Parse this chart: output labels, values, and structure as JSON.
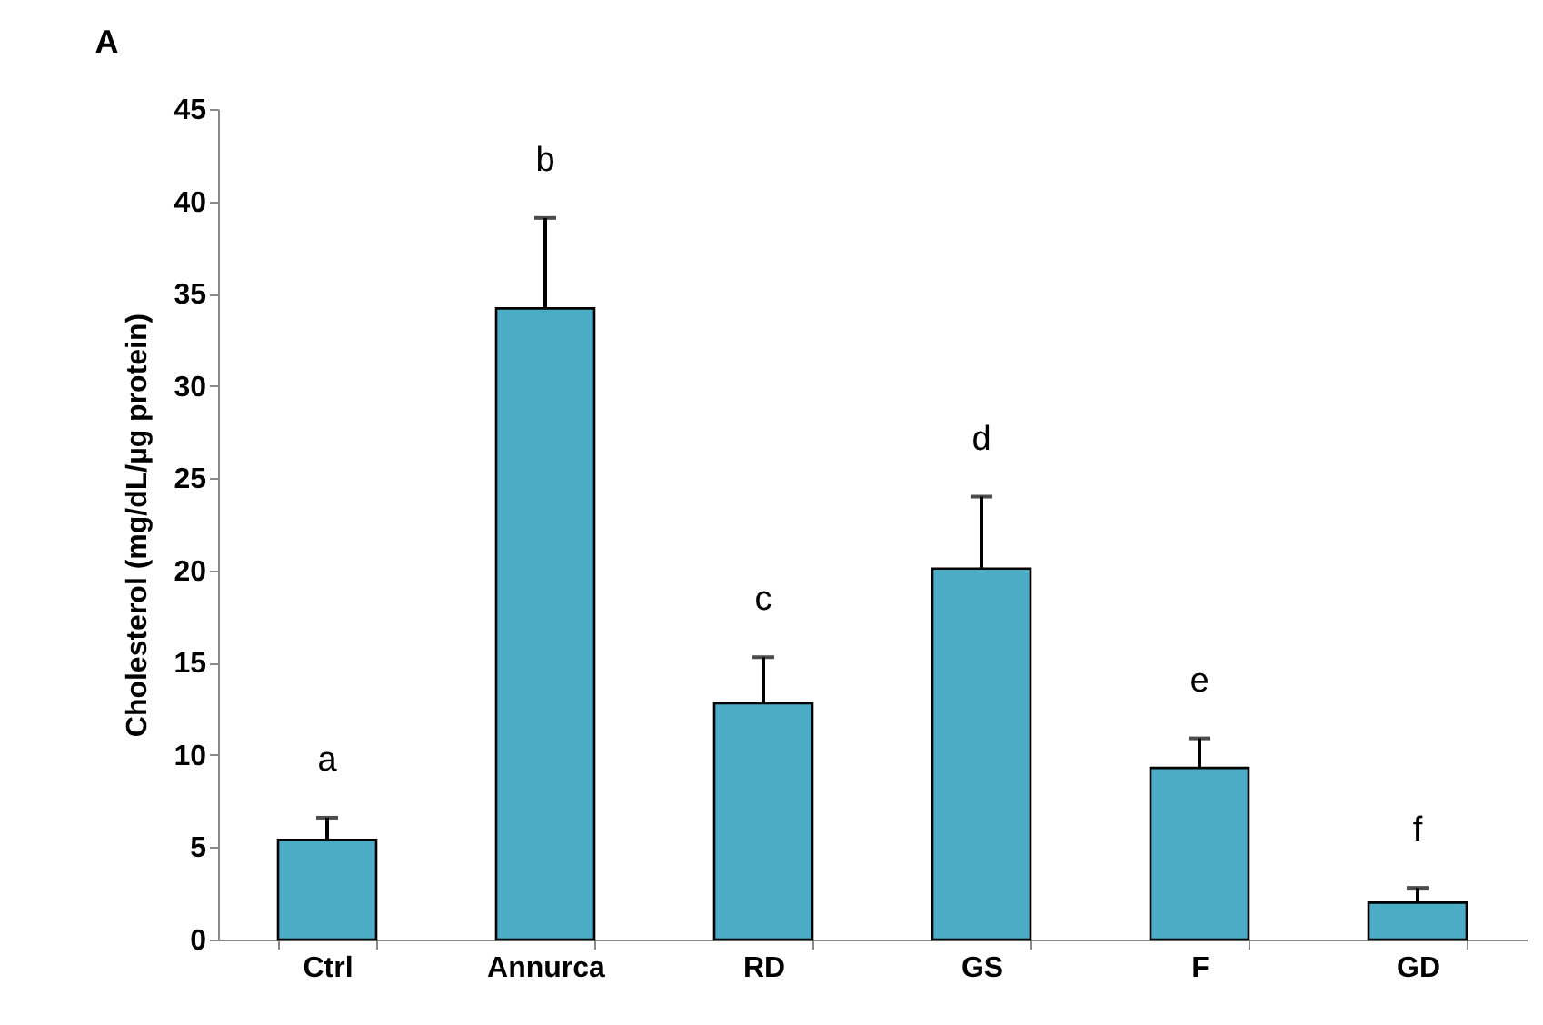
{
  "chart_data": {
    "type": "bar",
    "title": "A",
    "ylabel": "Cholesterol (mg/dL/µg protein)",
    "categories": [
      "Ctrl",
      "Annurca",
      "RD",
      "GS",
      "F",
      "GD"
    ],
    "values": [
      5.4,
      34.2,
      12.8,
      20.1,
      9.3,
      2.0
    ],
    "errors": [
      1.2,
      4.9,
      2.5,
      3.9,
      1.6,
      0.8
    ],
    "color": "#4bacc6",
    "ylim": [
      0,
      45
    ],
    "yticks": [
      0,
      5,
      10,
      15,
      20,
      25,
      30,
      35,
      40,
      45
    ],
    "grid": false,
    "annotations": [
      "a",
      "b",
      "c",
      "d",
      "e",
      "f"
    ]
  }
}
